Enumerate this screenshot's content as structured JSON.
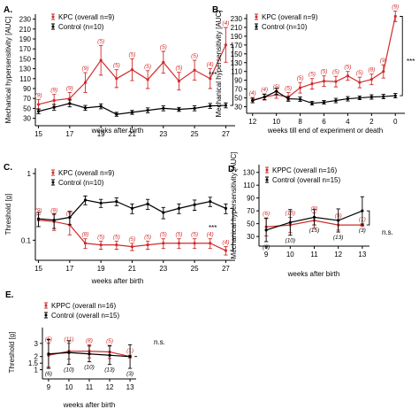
{
  "colors": {
    "kpc": "#d22b2b",
    "control": "#000000",
    "axis": "#000000"
  },
  "chart_data": [
    {
      "id": "A",
      "type": "line",
      "panel_label": "A.",
      "title": "",
      "xlabel": "weeks after birth",
      "ylabel": "Mechanical hypersensitivity [AUC]",
      "xlim": [
        14.8,
        27.6
      ],
      "ylim": [
        15,
        240
      ],
      "xticks": [
        15,
        17,
        19,
        21,
        23,
        25,
        27
      ],
      "xtick_labels": [
        "15",
        "17",
        "19",
        "21",
        "23",
        "25",
        "27"
      ],
      "yticks": [
        30,
        50,
        70,
        90,
        110,
        130,
        150,
        170,
        190,
        210,
        230
      ],
      "ytick_labels": [
        "30",
        "50",
        "70",
        "90",
        "110",
        "130",
        "150",
        "170",
        "190",
        "210",
        "230"
      ],
      "legend": {
        "position": "top-left",
        "entries": [
          "KPC (overall n=9)",
          "Control (n=10)"
        ]
      },
      "significance": "***",
      "series": [
        {
          "name": "KPC (overall n=9)",
          "color_key": "kpc",
          "x": [
            15,
            16,
            17,
            18,
            19,
            20,
            21,
            22,
            23,
            24,
            25,
            26,
            27
          ],
          "values": [
            58,
            66,
            70,
            102,
            147,
            110,
            128,
            108,
            143,
            105,
            127,
            110,
            178
          ],
          "err": [
            10,
            12,
            12,
            20,
            30,
            18,
            22,
            18,
            22,
            18,
            20,
            20,
            35
          ],
          "n_labels": [
            "(9)",
            "(9)",
            "(9)",
            "(9)",
            "(5)",
            "(5)",
            "(5)",
            "(5)",
            "(5)",
            "(5)",
            "(5)",
            "(4)",
            "(4)"
          ]
        },
        {
          "name": "Control (n=10)",
          "color_key": "control",
          "x": [
            15,
            16,
            17,
            18,
            19,
            20,
            21,
            22,
            23,
            24,
            25,
            26,
            27
          ],
          "values": [
            44,
            52,
            60,
            51,
            54,
            38,
            42,
            46,
            50,
            48,
            50,
            55,
            56
          ],
          "err": [
            5,
            6,
            7,
            5,
            5,
            4,
            4,
            5,
            5,
            4,
            5,
            5,
            5
          ]
        }
      ]
    },
    {
      "id": "B",
      "type": "line",
      "panel_label": "B.",
      "title": "",
      "xlabel": "weeks till end of experiment or death",
      "ylabel": "Mechanical hypersensitivity [AUC]",
      "xlim": [
        12.5,
        -0.8
      ],
      "ylim": [
        15,
        240
      ],
      "xticks": [
        12,
        10,
        8,
        6,
        4,
        2,
        0
      ],
      "xtick_labels": [
        "12",
        "10",
        "8",
        "6",
        "4",
        "2",
        "0"
      ],
      "yticks": [
        30,
        50,
        70,
        90,
        110,
        130,
        150,
        170,
        190,
        210,
        230
      ],
      "ytick_labels": [
        "30",
        "50",
        "70",
        "90",
        "110",
        "130",
        "150",
        "170",
        "190",
        "210",
        "230"
      ],
      "legend": {
        "position": "top-left",
        "entries": [
          "KPC (overall n=9)",
          "Control (n=10)"
        ]
      },
      "significance": "***",
      "series": [
        {
          "name": "KPC (overall n=9)",
          "color_key": "kpc",
          "x": [
            12,
            11,
            10,
            9,
            8,
            7,
            6,
            5,
            4,
            3,
            2,
            1,
            0
          ],
          "values": [
            45,
            52,
            57,
            52,
            73,
            82,
            88,
            87,
            100,
            85,
            92,
            110,
            235
          ],
          "err": [
            6,
            7,
            8,
            10,
            12,
            12,
            12,
            12,
            10,
            12,
            12,
            15,
            12
          ],
          "n_labels": [
            "(4)",
            "(4)",
            "(5)",
            "(5)",
            "(5)",
            "(5)",
            "(5)",
            "(5)",
            "(5)",
            "(5)",
            "(8)",
            "(9)",
            "(9)"
          ]
        },
        {
          "name": "Control (n=10)",
          "color_key": "control",
          "x": [
            12,
            11,
            10,
            9,
            8,
            7,
            6,
            5,
            4,
            3,
            2,
            1,
            0
          ],
          "values": [
            44,
            52,
            65,
            48,
            47,
            38,
            40,
            44,
            48,
            50,
            52,
            53,
            55
          ],
          "err": [
            5,
            6,
            7,
            5,
            5,
            4,
            4,
            5,
            5,
            4,
            5,
            5,
            5
          ]
        }
      ]
    },
    {
      "id": "C",
      "type": "line",
      "panel_label": "C.",
      "title": "",
      "xlabel": "weeks after birth",
      "ylabel": "Threshold [g]",
      "yscale": "log",
      "xlim": [
        14.8,
        27.6
      ],
      "ylim": [
        0.05,
        1.2
      ],
      "xticks": [
        15,
        17,
        19,
        21,
        23,
        25,
        27
      ],
      "xtick_labels": [
        "15",
        "17",
        "19",
        "21",
        "23",
        "25",
        "27"
      ],
      "yticks": [
        0.1,
        1
      ],
      "ytick_labels": [
        "0.1",
        "1"
      ],
      "legend": {
        "position": "top-left",
        "entries": [
          "KPC (overall n=9)",
          "Control (n=10)"
        ]
      },
      "significance": "***",
      "series": [
        {
          "name": "KPC (overall n=9)",
          "color_key": "kpc",
          "x": [
            15,
            16,
            17,
            18,
            19,
            20,
            21,
            22,
            23,
            24,
            25,
            26,
            27
          ],
          "values": [
            0.2,
            0.19,
            0.17,
            0.09,
            0.085,
            0.085,
            0.08,
            0.085,
            0.09,
            0.09,
            0.09,
            0.09,
            0.07
          ],
          "err": [
            0.04,
            0.05,
            0.05,
            0.015,
            0.012,
            0.012,
            0.01,
            0.012,
            0.015,
            0.015,
            0.015,
            0.015,
            0.01
          ],
          "n_labels": [
            "(9)",
            "(9)",
            "(9)",
            "(8)",
            "(5)",
            "(5)",
            "(5)",
            "(5)",
            "(5)",
            "(5)",
            "(5)",
            "(4)",
            "(4)"
          ]
        },
        {
          "name": "Control (n=10)",
          "color_key": "control",
          "x": [
            15,
            16,
            17,
            18,
            19,
            20,
            21,
            22,
            23,
            24,
            25,
            26,
            27
          ],
          "values": [
            0.21,
            0.2,
            0.22,
            0.4,
            0.36,
            0.38,
            0.3,
            0.35,
            0.26,
            0.3,
            0.34,
            0.38,
            0.3
          ],
          "err": [
            0.05,
            0.05,
            0.05,
            0.06,
            0.05,
            0.05,
            0.05,
            0.06,
            0.05,
            0.05,
            0.06,
            0.06,
            0.05
          ]
        }
      ]
    },
    {
      "id": "D",
      "type": "line",
      "panel_label": "D.",
      "title": "",
      "xlabel": "weeks after birth",
      "ylabel": "Mechanical hypersensitivity [AUC]",
      "xlim": [
        8.7,
        13.3
      ],
      "ylim": [
        15,
        142
      ],
      "xticks": [
        9,
        10,
        11,
        12,
        13
      ],
      "xtick_labels": [
        "9",
        "10",
        "11",
        "12",
        "13"
      ],
      "yticks": [
        30,
        50,
        70,
        90,
        110,
        130
      ],
      "ytick_labels": [
        "30",
        "50",
        "70",
        "90",
        "110",
        "130"
      ],
      "legend": {
        "position": "top-left",
        "entries": [
          "KPPC (overall n=16)",
          "Control (overall n=15)"
        ]
      },
      "significance": "n.s.",
      "series": [
        {
          "name": "KPPC (overall n=16)",
          "color_key": "kpc",
          "x": [
            9,
            10,
            11,
            12,
            13
          ],
          "values": [
            45,
            48,
            55,
            48,
            48
          ],
          "err": [
            14,
            12,
            12,
            8,
            2
          ],
          "n_labels": [
            "(6)",
            "(15)",
            "(8)",
            "(5)",
            "(1)"
          ]
        },
        {
          "name": "Control (overall n=15)",
          "color_key": "control",
          "x": [
            9,
            10,
            11,
            12,
            13
          ],
          "values": [
            40,
            52,
            60,
            55,
            70
          ],
          "err": [
            18,
            20,
            12,
            18,
            22
          ],
          "n_labels": [
            "(6)",
            "(10)",
            "(15)",
            "(13)",
            "(3)"
          ]
        }
      ]
    },
    {
      "id": "E",
      "type": "line",
      "panel_label": "E.",
      "title": "",
      "xlabel": "weeks after birth",
      "ylabel": "Threshold [g]",
      "xlim": [
        8.7,
        13.3
      ],
      "ylim": [
        0.3,
        4.2
      ],
      "xticks": [
        9,
        10,
        11,
        12,
        13
      ],
      "xtick_labels": [
        "9",
        "10",
        "11",
        "12",
        "13"
      ],
      "yticks": [
        1,
        1.5,
        2,
        3
      ],
      "ytick_labels": [
        "1",
        "1.5",
        "2",
        "3"
      ],
      "legend": {
        "position": "top-left",
        "entries": [
          "KPPC (overall n=16)",
          "Control (overall n=15)"
        ]
      },
      "significance": "n.s.",
      "series": [
        {
          "name": "KPPC (overall n=16)",
          "color_key": "kpc",
          "x": [
            9,
            10,
            11,
            12,
            13
          ],
          "values": [
            2.1,
            2.4,
            2.4,
            2.35,
            2.0
          ],
          "err": [
            0.9,
            0.6,
            0.5,
            0.5,
            0.1
          ],
          "n_labels": [
            "(5)",
            "(11)",
            "(8)",
            "(5)",
            "(1)"
          ]
        },
        {
          "name": "Control (overall n=15)",
          "color_key": "control",
          "x": [
            9,
            10,
            11,
            12,
            13
          ],
          "values": [
            2.2,
            2.3,
            2.2,
            2.1,
            2.0
          ],
          "err": [
            1.1,
            0.9,
            0.6,
            0.7,
            0.9
          ],
          "n_labels": [
            "(6)",
            "(10)",
            "(10)",
            "(13)",
            "(3)"
          ]
        }
      ]
    }
  ]
}
